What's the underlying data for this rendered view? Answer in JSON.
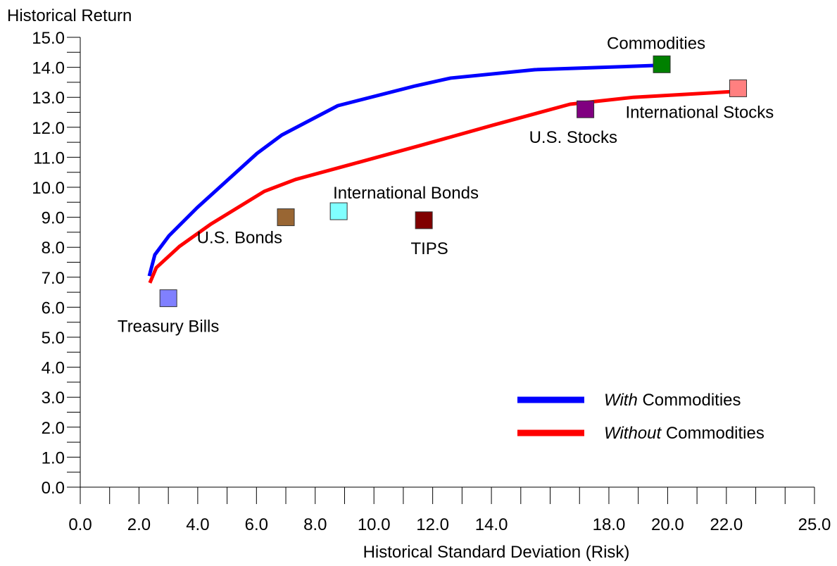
{
  "chart_data": {
    "type": "scatter",
    "y_label": "Historical Return",
    "x_label": "Historical Standard Deviation (Risk)",
    "xlim": [
      0,
      25
    ],
    "ylim": [
      0,
      15
    ],
    "xticks": [
      {
        "value": 0,
        "label": "0.0"
      },
      {
        "value": 2,
        "label": "2.0"
      },
      {
        "value": 4,
        "label": "4.0"
      },
      {
        "value": 6,
        "label": "6.0"
      },
      {
        "value": 8,
        "label": "8.0"
      },
      {
        "value": 10,
        "label": "10.0"
      },
      {
        "value": 12,
        "label": "12.0"
      },
      {
        "value": 14,
        "label": "14.0"
      },
      {
        "value": 18,
        "label": "18.0"
      },
      {
        "value": 20,
        "label": "20.0"
      },
      {
        "value": 22,
        "label": "22.0"
      },
      {
        "value": 25,
        "label": "25.0"
      }
    ],
    "x_minor_ticks": [
      1,
      3,
      5,
      7,
      9,
      11,
      13,
      15,
      16,
      17,
      19,
      21,
      23,
      24
    ],
    "yticks": [
      {
        "value": 0,
        "label": "0.0"
      },
      {
        "value": 1,
        "label": "1.0"
      },
      {
        "value": 2,
        "label": "2.0"
      },
      {
        "value": 3,
        "label": "3.0"
      },
      {
        "value": 4,
        "label": "4.0"
      },
      {
        "value": 5,
        "label": "5.0"
      },
      {
        "value": 6,
        "label": "6.0"
      },
      {
        "value": 7,
        "label": "7.0"
      },
      {
        "value": 8,
        "label": "8.0"
      },
      {
        "value": 9,
        "label": "9.0"
      },
      {
        "value": 10,
        "label": "10.0"
      },
      {
        "value": 11,
        "label": "11.0"
      },
      {
        "value": 12,
        "label": "12.0"
      },
      {
        "value": 13,
        "label": "13.0"
      },
      {
        "value": 14,
        "label": "14.0"
      },
      {
        "value": 15,
        "label": "15.0"
      }
    ],
    "y_minor_ticks": [
      0.5,
      1.5,
      2.5,
      3.5,
      4.5,
      5.5,
      6.5,
      7.5,
      8.5,
      9.5,
      10.5,
      11.5,
      12.5,
      13.5,
      14.5
    ],
    "points": {
      "labels": [
        "Treasury Bills",
        "U.S. Bonds",
        "International Bonds",
        "TIPS",
        "U.S. Stocks",
        "Commodities",
        "International Stocks"
      ],
      "x": [
        3.0,
        7.0,
        8.8,
        11.7,
        17.2,
        19.8,
        22.4
      ],
      "y": [
        6.3,
        9.0,
        9.2,
        8.9,
        12.6,
        14.1,
        13.3
      ],
      "colors": [
        "#8080ff",
        "#996633",
        "#80ffff",
        "#800000",
        "#800080",
        "#008000",
        "#ff8080"
      ]
    },
    "series": [
      {
        "name": "With Commodities",
        "color": "#0000ff",
        "x": [
          2.35,
          2.54,
          3.02,
          3.98,
          6.02,
          6.86,
          8.77,
          11.41,
          12.61,
          15.48,
          19.56
        ],
        "values": [
          7.04,
          7.75,
          8.38,
          9.32,
          11.13,
          11.74,
          12.72,
          13.38,
          13.64,
          13.92,
          14.06
        ]
      },
      {
        "name": "Without Commodities",
        "color": "#ff0000",
        "x": [
          2.37,
          2.59,
          3.38,
          4.46,
          6.26,
          7.33,
          9.25,
          11.64,
          14.05,
          16.68,
          18.84,
          22.2
        ],
        "values": [
          6.81,
          7.32,
          8.03,
          8.78,
          9.86,
          10.26,
          10.77,
          11.41,
          12.07,
          12.77,
          13.0,
          13.19
        ]
      }
    ],
    "legend": "lower right"
  }
}
